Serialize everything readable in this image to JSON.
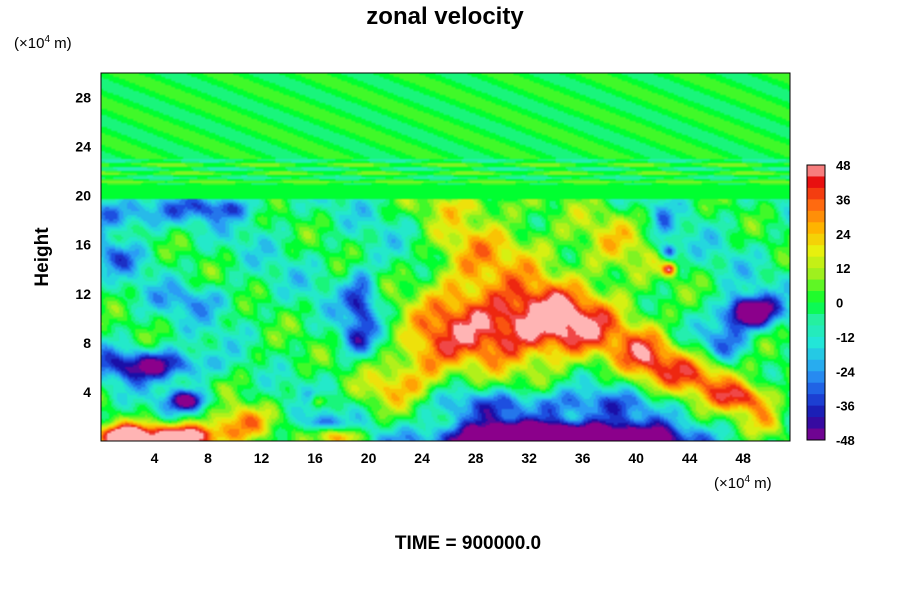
{
  "chart_data": {
    "type": "heatmap",
    "title": "zonal velocity",
    "footer": "TIME = 900000.0",
    "ylabel": "Height",
    "xunit": "(×10",
    "xunit_exp": "4",
    "xunit_tail": " m)",
    "yunit": "(×10",
    "yunit_exp": "4",
    "yunit_tail": " m)",
    "xlim": [
      0,
      51.5
    ],
    "ylim": [
      0,
      30
    ],
    "x_ticks": [
      4,
      8,
      12,
      16,
      20,
      24,
      28,
      32,
      36,
      40,
      44,
      48
    ],
    "y_ticks": [
      4,
      8,
      12,
      16,
      20,
      24,
      28
    ],
    "colorbar": {
      "ticks": [
        48,
        36,
        24,
        12,
        0,
        -12,
        -24,
        -36,
        -48
      ],
      "range": [
        -48,
        48
      ],
      "stops": [
        {
          "value": -48,
          "color": "#8b008b"
        },
        {
          "value": -40,
          "color": "#1a0fa8"
        },
        {
          "value": -32,
          "color": "#1d4fe0"
        },
        {
          "value": -24,
          "color": "#2a9df5"
        },
        {
          "value": -14,
          "color": "#22e6d8"
        },
        {
          "value": -6,
          "color": "#25f0a0"
        },
        {
          "value": 0,
          "color": "#00ff30"
        },
        {
          "value": 10,
          "color": "#9ff01e"
        },
        {
          "value": 18,
          "color": "#e8f00e"
        },
        {
          "value": 26,
          "color": "#ffb400"
        },
        {
          "value": 34,
          "color": "#ff6a10"
        },
        {
          "value": 42,
          "color": "#e81010"
        },
        {
          "value": 48,
          "color": "#ffb4b4"
        }
      ]
    },
    "features": [
      {
        "x": 33,
        "y": 9.5,
        "sx": 6.5,
        "sy": 3.3,
        "v": 62
      },
      {
        "x": 27,
        "y": 13,
        "sx": 3.2,
        "sy": 6,
        "v": 24
      },
      {
        "x": 32,
        "y": 16,
        "sx": 4.2,
        "sy": 3,
        "v": 18
      },
      {
        "x": 38.5,
        "y": 16,
        "sx": 3,
        "sy": 3.2,
        "v": 18
      },
      {
        "x": 45,
        "y": 5.5,
        "sx": 3,
        "sy": 2,
        "v": 44
      },
      {
        "x": 48,
        "y": 3.5,
        "sx": 2.2,
        "sy": 1.3,
        "v": 50
      },
      {
        "x": 41,
        "y": 7,
        "sx": 2.2,
        "sy": 2.2,
        "v": 34
      },
      {
        "x": 24,
        "y": 6.5,
        "sx": 2.6,
        "sy": 3,
        "v": 30
      },
      {
        "x": 21.5,
        "y": 4,
        "sx": 2.4,
        "sy": 1.8,
        "v": 20
      },
      {
        "x": 34,
        "y": 0,
        "sx": 8.5,
        "sy": 1.5,
        "v": -95
      },
      {
        "x": 33,
        "y": 3,
        "sx": 9,
        "sy": 1.2,
        "v": -25
      },
      {
        "x": 6,
        "y": 0.3,
        "sx": 3.6,
        "sy": 1.2,
        "v": 70
      },
      {
        "x": 1.5,
        "y": 0.3,
        "sx": 1.8,
        "sy": 1,
        "v": 55
      },
      {
        "x": 10.5,
        "y": 1.6,
        "sx": 2,
        "sy": 1.4,
        "v": 30
      },
      {
        "x": 18,
        "y": 0.3,
        "sx": 1.6,
        "sy": 0.8,
        "v": 45
      },
      {
        "x": 4,
        "y": 6.2,
        "sx": 4,
        "sy": 1.2,
        "v": -44
      },
      {
        "x": 6.5,
        "y": 3.3,
        "sx": 1.6,
        "sy": 0.8,
        "v": -40
      },
      {
        "x": 2,
        "y": 18.5,
        "sx": 4,
        "sy": 1.3,
        "v": -26
      },
      {
        "x": 9,
        "y": 19,
        "sx": 3,
        "sy": 0.9,
        "v": -22
      },
      {
        "x": 1,
        "y": 15,
        "sx": 2,
        "sy": 1.2,
        "v": -18
      },
      {
        "x": 7,
        "y": 11.5,
        "sx": 3,
        "sy": 1.2,
        "v": -14
      },
      {
        "x": 19.5,
        "y": 11.5,
        "sx": 1.2,
        "sy": 2.5,
        "v": -32
      },
      {
        "x": 19,
        "y": 8.2,
        "sx": 1.2,
        "sy": 1.2,
        "v": -22
      },
      {
        "x": 48.5,
        "y": 10.5,
        "sx": 1.8,
        "sy": 1.2,
        "v": -70
      },
      {
        "x": 46.5,
        "y": 8,
        "sx": 1.8,
        "sy": 2,
        "v": -30
      },
      {
        "x": 42.5,
        "y": 15.5,
        "sx": 0.6,
        "sy": 0.6,
        "v": -35
      },
      {
        "x": 42.5,
        "y": 14,
        "sx": 0.5,
        "sy": 0.5,
        "v": 45
      },
      {
        "x": 42,
        "y": 17.5,
        "sx": 0.7,
        "sy": 2,
        "v": -14
      },
      {
        "x": 16.5,
        "y": 1.5,
        "sx": 1,
        "sy": 0.6,
        "v": -26
      },
      {
        "x": 16.2,
        "y": 3.2,
        "sx": 0.6,
        "sy": 0.6,
        "v": 28
      },
      {
        "x": 50,
        "y": 1.5,
        "sx": 1.6,
        "sy": 1.4,
        "v": 30
      },
      {
        "x": 12,
        "y": 6.5,
        "sx": 3.5,
        "sy": 2.2,
        "v": 8
      },
      {
        "x": 28,
        "y": 19.3,
        "sx": 4.5,
        "sy": 1,
        "v": 14
      }
    ]
  }
}
